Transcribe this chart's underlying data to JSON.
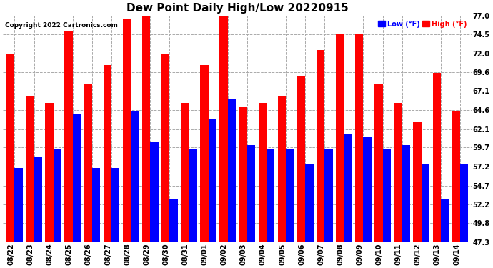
{
  "title": "Dew Point Daily High/Low 20220915",
  "copyright": "Copyright 2022 Cartronics.com",
  "legend_low_label": "Low (°F)",
  "legend_high_label": "High (°F)",
  "dates": [
    "08/22",
    "08/23",
    "08/24",
    "08/25",
    "08/26",
    "08/27",
    "08/28",
    "08/29",
    "08/30",
    "08/31",
    "09/01",
    "09/02",
    "09/03",
    "09/04",
    "09/05",
    "09/06",
    "09/07",
    "09/08",
    "09/09",
    "09/10",
    "09/11",
    "09/12",
    "09/13",
    "09/14"
  ],
  "high_values": [
    72.0,
    66.5,
    65.5,
    75.0,
    68.0,
    70.5,
    76.5,
    77.0,
    72.0,
    65.5,
    70.5,
    77.0,
    65.0,
    65.5,
    66.5,
    69.0,
    72.5,
    74.5,
    74.5,
    68.0,
    65.5,
    63.0,
    69.5,
    64.5
  ],
  "low_values": [
    57.0,
    58.5,
    59.5,
    64.0,
    57.0,
    57.0,
    64.5,
    60.5,
    53.0,
    59.5,
    63.5,
    66.0,
    60.0,
    59.5,
    59.5,
    57.5,
    59.5,
    61.5,
    61.0,
    59.5,
    60.0,
    57.5,
    53.0,
    57.5
  ],
  "high_color": "#FF0000",
  "low_color": "#0000FF",
  "bg_color": "#FFFFFF",
  "grid_color": "#AAAAAA",
  "ylim_min": 47.3,
  "ylim_max": 77.0,
  "yticks": [
    47.3,
    49.8,
    52.2,
    54.7,
    57.2,
    59.7,
    62.1,
    64.6,
    67.1,
    69.6,
    72.0,
    74.5,
    77.0
  ],
  "title_fontsize": 11,
  "tick_fontsize": 7,
  "bar_width": 0.42,
  "bar_bottom": 47.3
}
